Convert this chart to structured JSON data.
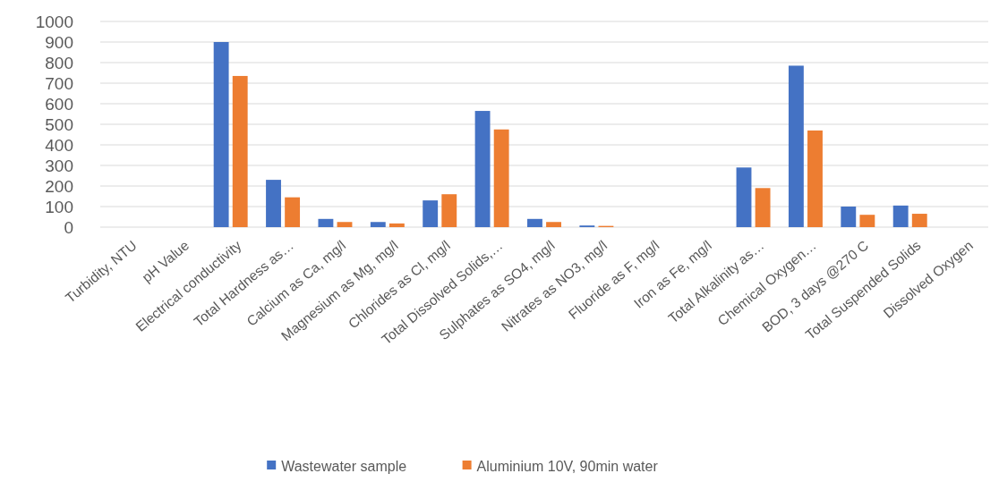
{
  "chart_data": {
    "type": "bar",
    "categories": [
      "Turbidity, NTU",
      "pH Value",
      "Electrical conductivity",
      "Total Hardness as…",
      "Calcium as Ca, mg/l",
      "Magnesium as Mg, mg/l",
      "Chlorides as Cl, mg/l",
      "Total Dissolved Solids,…",
      "Sulphates as SO4, mg/l",
      "Nitrates as NO3, mg/l",
      "Fluoride as F, mg/l",
      "Iron as Fe, mg/l",
      "Total Alkalinity as…",
      "Chemical Oxygen…",
      "BOD, 3 days @270 C",
      "Total Suspended Solids",
      "Dissolved Oxygen"
    ],
    "series": [
      {
        "name": "Wastewater sample",
        "color": "#4472c4",
        "values": [
          null,
          null,
          900,
          230,
          40,
          25,
          130,
          565,
          40,
          8,
          null,
          null,
          290,
          785,
          100,
          105,
          null
        ]
      },
      {
        "name": "Aluminium 10V, 90min water",
        "color": "#ed7d31",
        "values": [
          null,
          null,
          735,
          145,
          25,
          18,
          160,
          475,
          25,
          6,
          null,
          null,
          190,
          470,
          60,
          65,
          null
        ]
      }
    ],
    "ylim": [
      0,
      1000
    ],
    "yticks": [
      0,
      100,
      200,
      300,
      400,
      500,
      600,
      700,
      800,
      900,
      1000
    ],
    "grid": "y",
    "legend": "bottom"
  }
}
